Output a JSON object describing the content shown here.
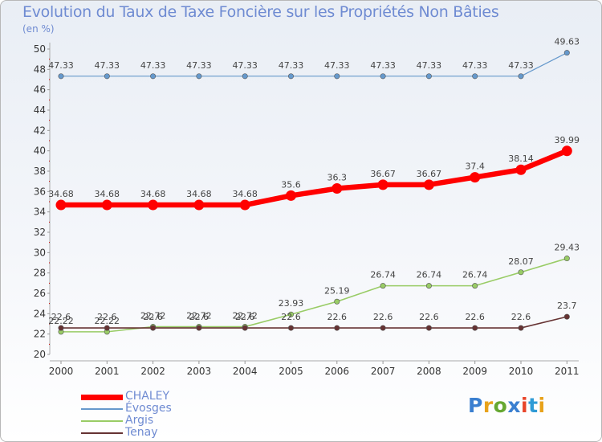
{
  "title": "Evolution du Taux de Taxe Foncière sur les Propriétés Non Bâties",
  "unit": "(en %)",
  "logo": {
    "text": "Proxiti"
  },
  "chart_data": {
    "type": "line",
    "x": [
      "2000",
      "2001",
      "2002",
      "2003",
      "2004",
      "2005",
      "2006",
      "2007",
      "2008",
      "2009",
      "2010",
      "2011"
    ],
    "ylim": [
      20,
      50
    ],
    "yticks": [
      20,
      22,
      24,
      26,
      28,
      30,
      32,
      34,
      36,
      38,
      40,
      42,
      44,
      46,
      48,
      50
    ],
    "grid": false,
    "legend_position": "bottom-left",
    "series": [
      {
        "name": "CHALEY",
        "color": "#ff0000",
        "values": [
          34.68,
          34.68,
          34.68,
          34.68,
          34.68,
          35.6,
          36.3,
          36.67,
          36.67,
          37.4,
          38.14,
          39.99
        ],
        "labels": [
          "34.68",
          "34.68",
          "34.68",
          "34.68",
          "34.68",
          "35.6",
          "36.3",
          "36.67",
          "36.67",
          "37.4",
          "38.14",
          "39.99"
        ]
      },
      {
        "name": "Évosges",
        "color": "#6699cc",
        "values": [
          47.33,
          47.33,
          47.33,
          47.33,
          47.33,
          47.33,
          47.33,
          47.33,
          47.33,
          47.33,
          47.33,
          49.63
        ],
        "labels": [
          "47.33",
          "47.33",
          "47.33",
          "47.33",
          "47.33",
          "47.33",
          "47.33",
          "47.33",
          "47.33",
          "47.33",
          "47.33",
          "49.63"
        ]
      },
      {
        "name": "Argis",
        "color": "#99cc66",
        "values": [
          22.22,
          22.22,
          22.72,
          22.72,
          22.72,
          23.93,
          25.19,
          26.74,
          26.74,
          26.74,
          28.07,
          29.43
        ],
        "labels": [
          "22.22",
          "22.22",
          "22.72",
          "22.72",
          "22.72",
          "23.93",
          "25.19",
          "26.74",
          "26.74",
          "26.74",
          "28.07",
          "29.43"
        ]
      },
      {
        "name": "Tenay",
        "color": "#663333",
        "values": [
          22.6,
          22.6,
          22.6,
          22.6,
          22.6,
          22.6,
          22.6,
          22.6,
          22.6,
          22.6,
          22.6,
          23.7
        ],
        "labels": [
          "22.6",
          "22.6",
          "22.6",
          "22.6",
          "22.6",
          "22.6",
          "22.6",
          "22.6",
          "22.6",
          "22.6",
          "22.6",
          "23.7"
        ]
      }
    ]
  }
}
